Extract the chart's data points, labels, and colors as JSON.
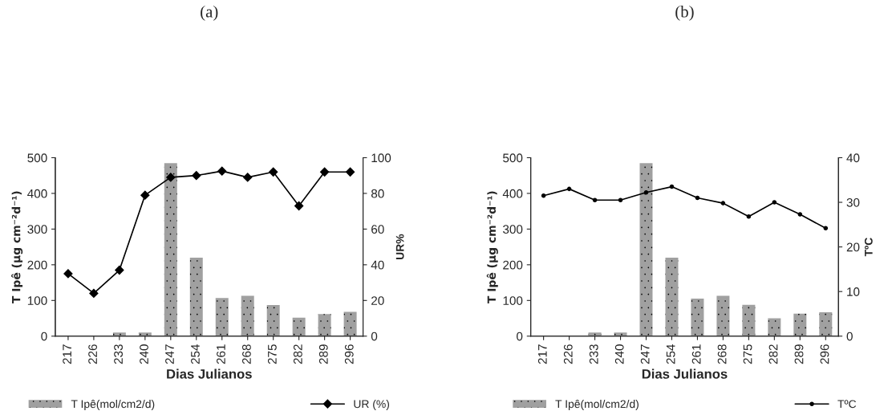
{
  "chart_data": [
    {
      "type": "bar",
      "title": "(a)",
      "xlabel": "Dias Julianos",
      "ylabel": "T Ipê (µg cm⁻²d⁻¹)",
      "y2label": "UR%",
      "categories": [
        "217",
        "226",
        "233",
        "240",
        "247",
        "254",
        "261",
        "268",
        "275",
        "282",
        "289",
        "296"
      ],
      "series": [
        {
          "name": "T Ipê(mol/cm2/d)",
          "color": "#a0a0a0",
          "values": [
            null,
            null,
            10,
            10,
            485,
            220,
            107,
            113,
            87,
            52,
            62,
            68
          ]
        },
        {
          "name": "UR (%)",
          "type": "line",
          "axis": "y2",
          "color": "#000000",
          "marker": "diamond",
          "values": [
            35,
            24,
            37,
            79,
            89,
            90,
            92.5,
            89,
            92,
            73,
            92,
            92
          ]
        }
      ],
      "ylim": [
        0,
        500
      ],
      "yticks": [
        0,
        100,
        200,
        300,
        400,
        500
      ],
      "y2lim": [
        0,
        100
      ],
      "y2ticks": [
        0,
        20,
        40,
        60,
        80,
        100
      ],
      "grid": false,
      "legend": "bottom"
    },
    {
      "type": "bar",
      "title": "(b)",
      "xlabel": "Dias Julianos",
      "ylabel": "T Ipê (µg cm⁻²d⁻¹)",
      "y2label": "TºC",
      "categories": [
        "217",
        "226",
        "233",
        "240",
        "247",
        "254",
        "261",
        "268",
        "275",
        "282",
        "289",
        "296"
      ],
      "series": [
        {
          "name": "T Ipê(mol/cm2/d)",
          "color": "#a0a0a0",
          "values": [
            null,
            null,
            10,
            10,
            485,
            220,
            105,
            113,
            88,
            50,
            63,
            67
          ]
        },
        {
          "name": "TºC",
          "type": "line",
          "axis": "y2",
          "color": "#000000",
          "marker": "circle",
          "values": [
            31.5,
            33,
            30.5,
            30.5,
            32.2,
            33.5,
            31,
            29.8,
            26.8,
            30,
            27.3,
            24.2
          ]
        }
      ],
      "ylim": [
        0,
        500
      ],
      "yticks": [
        0,
        100,
        200,
        300,
        400,
        500
      ],
      "y2lim": [
        0,
        40
      ],
      "y2ticks": [
        0,
        10,
        20,
        30,
        40
      ],
      "grid": false,
      "legend": "bottom"
    }
  ]
}
